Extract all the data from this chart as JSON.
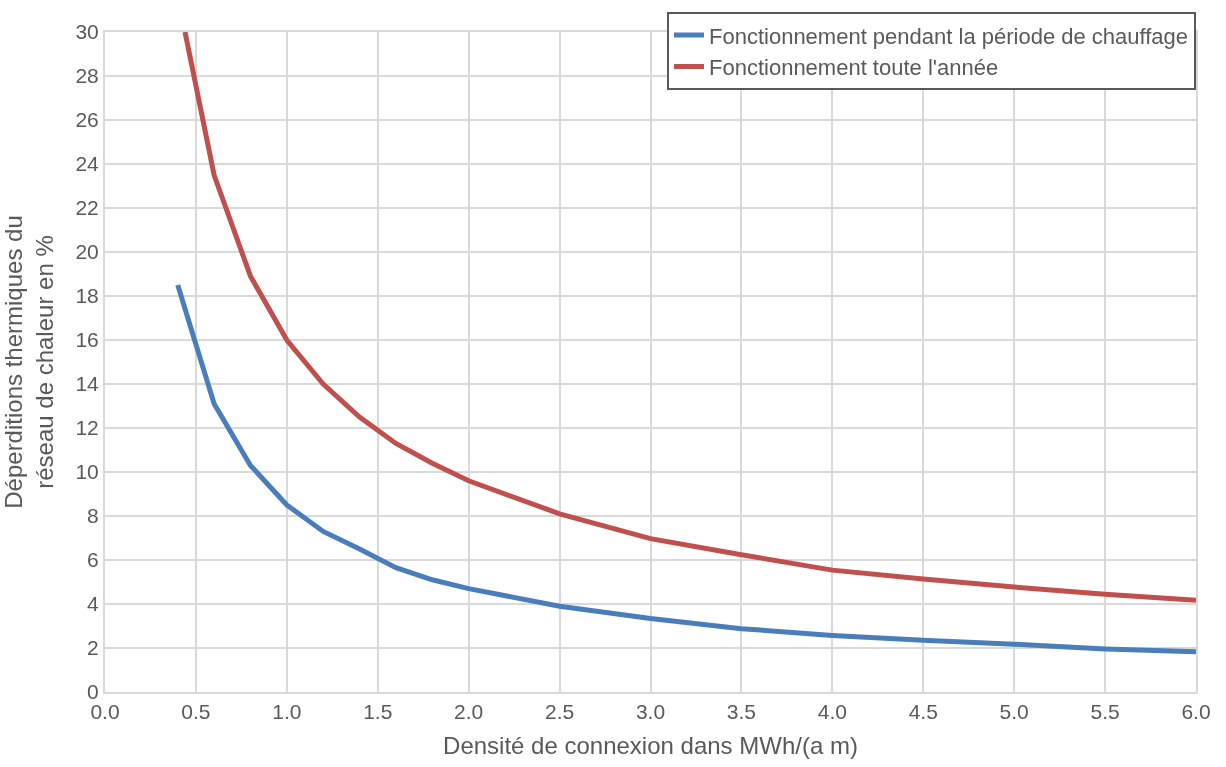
{
  "chart_data": {
    "type": "line",
    "xlabel": "Densité de connexion dans MWh/(a m)",
    "ylabel": "Déperditions thermiques du réseau de chaleur en %",
    "xlim": [
      0,
      6
    ],
    "xticks": [
      {
        "value": 0,
        "label": "0.0"
      },
      0.5,
      {
        "value": 1,
        "label": "1.0"
      },
      1.5,
      {
        "value": 2,
        "label": "2.0"
      },
      2.5,
      {
        "value": 3,
        "label": "3.0"
      },
      3.5,
      {
        "value": 4,
        "label": "4.0"
      },
      4.5,
      {
        "value": 5,
        "label": "5.0"
      },
      5.5,
      {
        "value": 6,
        "label": "6.0"
      }
    ],
    "ylim": [
      0,
      30
    ],
    "yticks": [
      0,
      2,
      4,
      6,
      8,
      10,
      12,
      14,
      16,
      18,
      20,
      22,
      24,
      26,
      28,
      30
    ],
    "grid": true,
    "legend": "top right",
    "marker": "none",
    "line_style": "solid",
    "series": [
      {
        "name": "Fonctionnement pendant la période de chauffage",
        "color": "#4a7ebb",
        "x": [
          0.4,
          0.6,
          0.8,
          1.0,
          1.2,
          1.4,
          1.6,
          1.8,
          2.0,
          2.5,
          3.0,
          3.5,
          4.0,
          4.5,
          5.0,
          5.5,
          6.0
        ],
        "values": [
          18.5,
          13.1,
          10.3,
          8.5,
          7.3,
          6.5,
          5.65,
          5.1,
          4.7,
          3.9,
          3.34,
          2.88,
          2.57,
          2.35,
          2.17,
          1.96,
          1.83
        ]
      },
      {
        "name": "Fonctionnement toute l'année",
        "color": "#c0504d",
        "x": [
          0.44,
          0.6,
          0.8,
          1.0,
          1.2,
          1.4,
          1.6,
          1.8,
          2.0,
          2.5,
          3.0,
          3.5,
          4.0,
          4.5,
          5.0,
          5.5,
          6.0
        ],
        "values": [
          30,
          23.5,
          18.9,
          16.0,
          14.0,
          12.5,
          11.3,
          10.4,
          9.6,
          8.1,
          6.97,
          6.24,
          5.54,
          5.14,
          4.77,
          4.44,
          4.17
        ]
      }
    ]
  }
}
